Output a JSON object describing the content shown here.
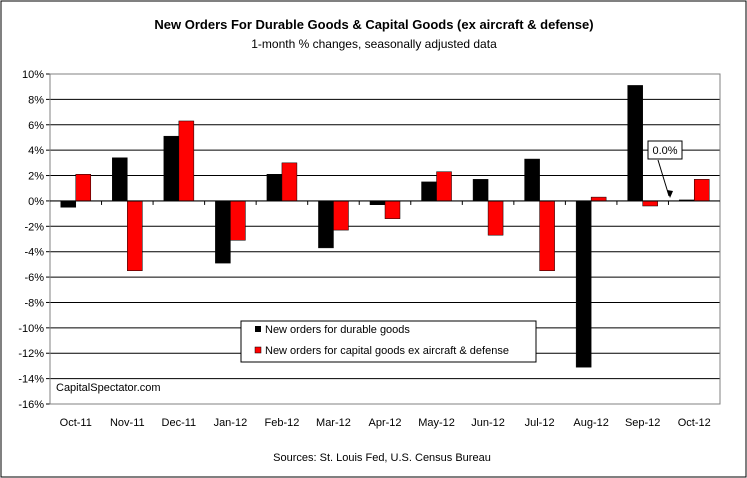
{
  "chart_data": {
    "type": "bar",
    "title": "New Orders For Durable Goods & Capital Goods (ex aircraft & defense)",
    "subtitle": "1-month % changes, seasonally adjusted data",
    "categories": [
      "Oct-11",
      "Nov-11",
      "Dec-11",
      "Jan-12",
      "Feb-12",
      "Mar-12",
      "Apr-12",
      "May-12",
      "Jun-12",
      "Jul-12",
      "Aug-12",
      "Sep-12",
      "Oct-12"
    ],
    "ylim": [
      -16,
      10
    ],
    "yticks": [
      10,
      8,
      6,
      4,
      2,
      0,
      -2,
      -4,
      -6,
      -8,
      -10,
      -12,
      -14,
      -16
    ],
    "ytick_labels": [
      "10%",
      "8%",
      "6%",
      "4%",
      "2%",
      "0%",
      "-2%",
      "-4%",
      "-6%",
      "-8%",
      "-10%",
      "-12%",
      "-14%",
      "-16%"
    ],
    "grid": true,
    "legend_position": "bottom-center",
    "series": [
      {
        "name": "New orders for durable goods",
        "color": "#000000",
        "values": [
          -0.5,
          3.4,
          5.1,
          -4.9,
          2.1,
          -3.7,
          -0.3,
          1.5,
          1.7,
          3.3,
          -13.1,
          9.1,
          0.0
        ]
      },
      {
        "name": "New orders for capital goods ex aircraft & defense",
        "color": "#ff0000",
        "values": [
          2.1,
          -5.5,
          6.3,
          -3.1,
          3.0,
          -2.3,
          -1.4,
          2.3,
          -2.7,
          -5.5,
          0.3,
          -0.4,
          1.7
        ]
      }
    ],
    "annotation": {
      "text": "0.0%",
      "category_index": 12,
      "series_index": 0
    }
  },
  "watermark": "CapitalSpectator.com",
  "source": "Sources: St. Louis Fed, U.S. Census Bureau"
}
